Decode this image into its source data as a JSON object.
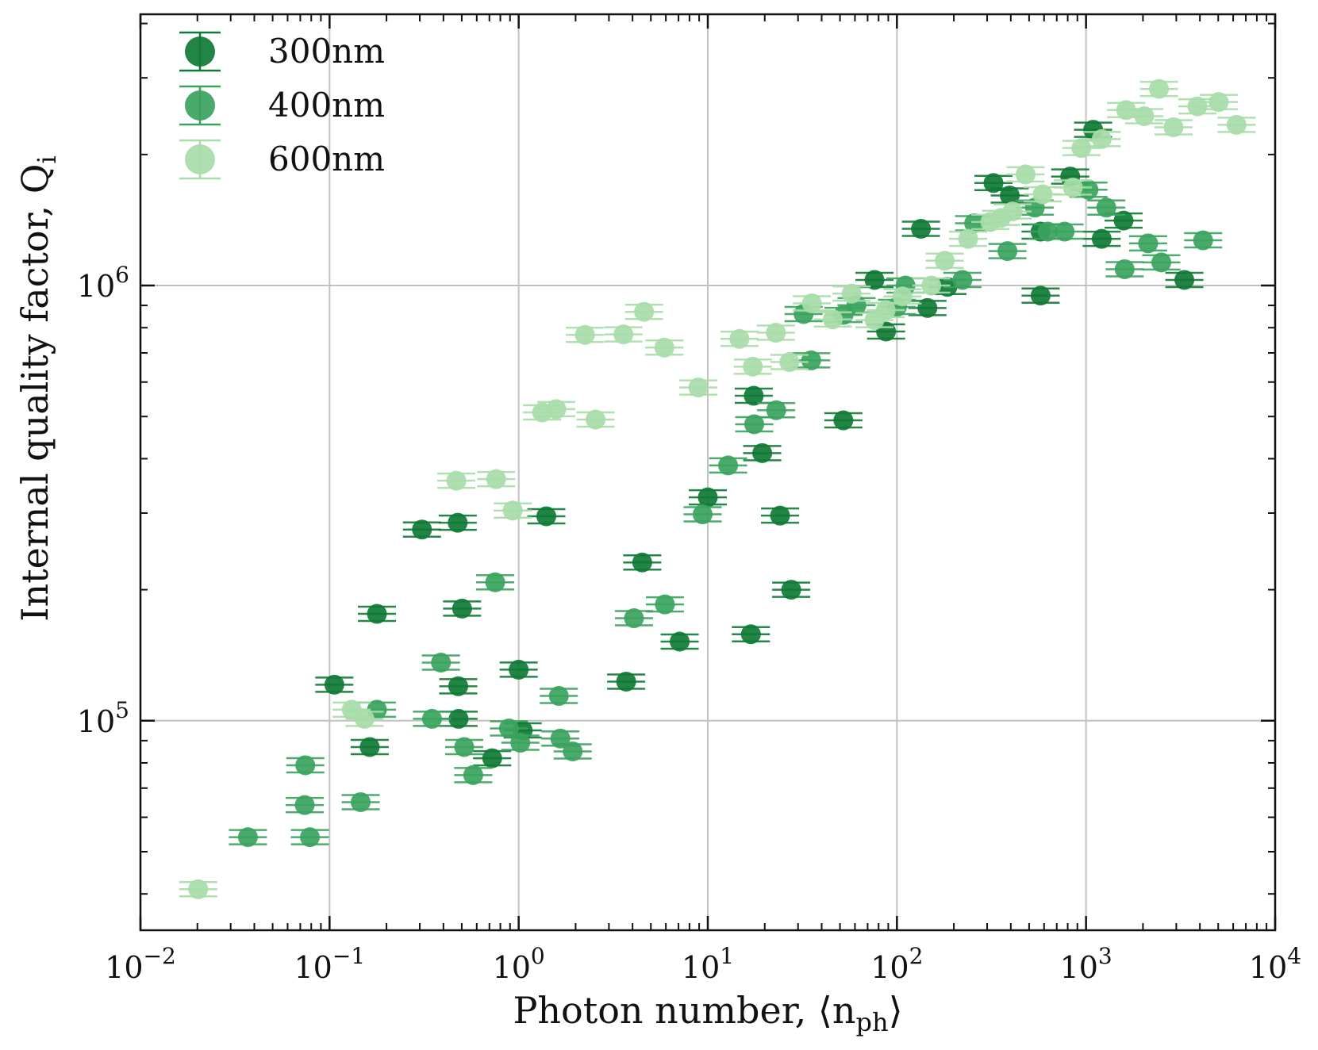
{
  "chart_data": {
    "type": "scatter",
    "xscale": "log",
    "yscale": "log",
    "xlim": [
      0.01,
      10000
    ],
    "ylim": [
      33000,
      4200000
    ],
    "grid": true,
    "legend_position": "top-left",
    "xlabel": {
      "main": "Photon number, ⟨n",
      "sub": "ph",
      "end": "⟩"
    },
    "ylabel": {
      "main": "Internal quality factor, Q",
      "sub": "i"
    },
    "x_ticks": [
      {
        "value": 0.01,
        "base": "10",
        "exp": "−2"
      },
      {
        "value": 0.1,
        "base": "10",
        "exp": "−1"
      },
      {
        "value": 1,
        "base": "10",
        "exp": "0"
      },
      {
        "value": 10,
        "base": "10",
        "exp": "1"
      },
      {
        "value": 100,
        "base": "10",
        "exp": "2"
      },
      {
        "value": 1000,
        "base": "10",
        "exp": "3"
      },
      {
        "value": 10000,
        "base": "10",
        "exp": "4"
      }
    ],
    "y_ticks": [
      {
        "value": 100000,
        "base": "10",
        "exp": "5"
      },
      {
        "value": 1000000,
        "base": "10",
        "exp": "6"
      }
    ],
    "series": [
      {
        "name": "300nm",
        "color": "#0f7a35",
        "points": [
          [
            0.106,
            121000
          ],
          [
            0.163,
            87000
          ],
          [
            0.178,
            176000
          ],
          [
            0.308,
            275000
          ],
          [
            0.476,
            285000
          ],
          [
            0.479,
            120000
          ],
          [
            0.481,
            101000
          ],
          [
            0.502,
            181000
          ],
          [
            0.724,
            82000
          ],
          [
            1.0,
            131000
          ],
          [
            1.05,
            95000
          ],
          [
            1.4,
            295000
          ],
          [
            3.7,
            123000
          ],
          [
            4.5,
            231000
          ],
          [
            7.1,
            152000
          ],
          [
            10.0,
            326000
          ],
          [
            16.9,
            158000
          ],
          [
            17.5,
            558000
          ],
          [
            19.4,
            412000
          ],
          [
            24.1,
            296000
          ],
          [
            27.6,
            200000
          ],
          [
            52.1,
            490000
          ],
          [
            76.1,
            1030000
          ],
          [
            87.6,
            784000
          ],
          [
            145,
            888000
          ],
          [
            134,
            1350000
          ],
          [
            185,
            993000
          ],
          [
            324,
            1720000
          ],
          [
            395,
            1610000
          ],
          [
            575,
            948000
          ],
          [
            575,
            1330000
          ],
          [
            825,
            1780000
          ],
          [
            1090,
            2280000
          ],
          [
            1210,
            1280000
          ],
          [
            1580,
            1410000
          ],
          [
            3310,
            1030000
          ]
        ]
      },
      {
        "name": "400nm",
        "color": "#3aa35e",
        "points": [
          [
            0.037,
            54000
          ],
          [
            0.0739,
            64000
          ],
          [
            0.0744,
            79000
          ],
          [
            0.0787,
            54000
          ],
          [
            0.146,
            65000
          ],
          [
            0.178,
            106000
          ],
          [
            0.348,
            101000
          ],
          [
            0.388,
            136000
          ],
          [
            0.515,
            87000
          ],
          [
            0.575,
            75000
          ],
          [
            0.751,
            208000
          ],
          [
            0.888,
            96000
          ],
          [
            1.02,
            89000
          ],
          [
            1.63,
            114000
          ],
          [
            1.66,
            91000
          ],
          [
            1.93,
            85000
          ],
          [
            4.07,
            172000
          ],
          [
            5.93,
            185000
          ],
          [
            9.39,
            298000
          ],
          [
            12.8,
            386000
          ],
          [
            17.6,
            480000
          ],
          [
            23.0,
            517000
          ],
          [
            32.1,
            860000
          ],
          [
            35.2,
            673000
          ],
          [
            52.2,
            856000
          ],
          [
            61.1,
            901000
          ],
          [
            100.1,
            893000
          ],
          [
            111,
            1000000
          ],
          [
            222,
            1030000
          ],
          [
            256,
            1390000
          ],
          [
            384,
            1200000
          ],
          [
            536,
            1510000
          ],
          [
            627,
            1330000
          ],
          [
            770,
            1330000
          ],
          [
            1030,
            1660000
          ],
          [
            1280,
            1510000
          ],
          [
            1600,
            1090000
          ],
          [
            2130,
            1250000
          ],
          [
            2500,
            1130000
          ],
          [
            4160,
            1270000
          ]
        ]
      },
      {
        "name": "600nm",
        "color": "#a8dca9",
        "points": [
          [
            0.0202,
            41000
          ],
          [
            0.131,
            106000
          ],
          [
            0.153,
            101000
          ],
          [
            0.468,
            356000
          ],
          [
            0.76,
            359000
          ],
          [
            0.93,
            304000
          ],
          [
            1.33,
            511000
          ],
          [
            1.58,
            520000
          ],
          [
            2.55,
            492000
          ],
          [
            2.24,
            770000
          ],
          [
            3.58,
            772000
          ],
          [
            4.6,
            870000
          ],
          [
            5.89,
            720000
          ],
          [
            8.92,
            583000
          ],
          [
            14.7,
            754000
          ],
          [
            17.3,
            651000
          ],
          [
            22.9,
            779000
          ],
          [
            27.0,
            667000
          ],
          [
            35.5,
            910000
          ],
          [
            45.8,
            836000
          ],
          [
            57.6,
            958000
          ],
          [
            76.1,
            833000
          ],
          [
            87.3,
            878000
          ],
          [
            107,
            944000
          ],
          [
            152,
            1000000
          ],
          [
            179,
            1140000
          ],
          [
            238,
            1280000
          ],
          [
            312,
            1400000
          ],
          [
            355,
            1430000
          ],
          [
            409,
            1480000
          ],
          [
            479,
            1800000
          ],
          [
            590,
            1620000
          ],
          [
            852,
            1680000
          ],
          [
            945,
            2070000
          ],
          [
            1210,
            2170000
          ],
          [
            1630,
            2530000
          ],
          [
            2030,
            2450000
          ],
          [
            2430,
            2830000
          ],
          [
            2900,
            2310000
          ],
          [
            3880,
            2580000
          ],
          [
            5030,
            2640000
          ],
          [
            6250,
            2340000
          ]
        ]
      }
    ]
  }
}
